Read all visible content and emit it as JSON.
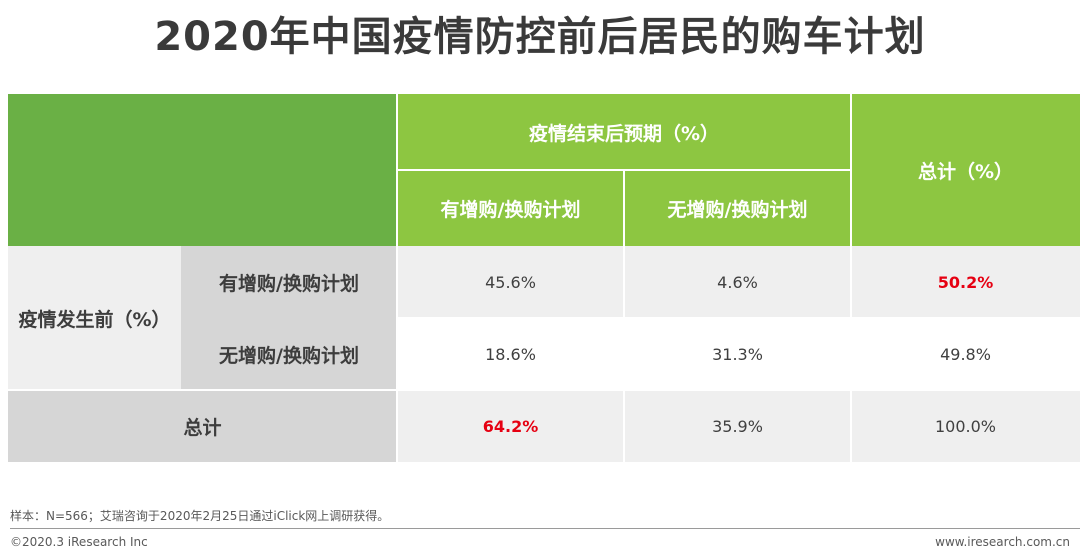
{
  "title": "2020年中国疫情防控前后居民的购车计划",
  "chart_data": {
    "type": "table",
    "header": {
      "group_label": "疫情结束后预期（%）",
      "col_plan": "有增购/换购计划",
      "col_noplan": "无增购/换购计划",
      "col_total": "总计（%）"
    },
    "row_group_label": "疫情发生前（%）",
    "rows": [
      {
        "label": "有增购/换购计划",
        "plan": "45.6%",
        "noplan": "4.6%",
        "total": "50.2%"
      },
      {
        "label": "无增购/换购计划",
        "plan": "18.6%",
        "noplan": "31.3%",
        "total": "49.8%"
      }
    ],
    "total_row": {
      "label": "总计",
      "plan": "64.2%",
      "noplan": "35.9%",
      "total": "100.0%"
    },
    "values": [
      [
        45.6,
        4.6,
        50.2
      ],
      [
        18.6,
        31.3,
        49.8
      ],
      [
        64.2,
        35.9,
        100.0
      ]
    ],
    "highlight_color": "#e60012",
    "header_colors": [
      "#6ab045",
      "#8dc641"
    ]
  },
  "note": "样本：N=566；艾瑞咨询于2020年2月25日通过iClick网上调研获得。",
  "footer": {
    "copyright": "©2020.3 iResearch Inc",
    "url": "www.iresearch.com.cn"
  }
}
